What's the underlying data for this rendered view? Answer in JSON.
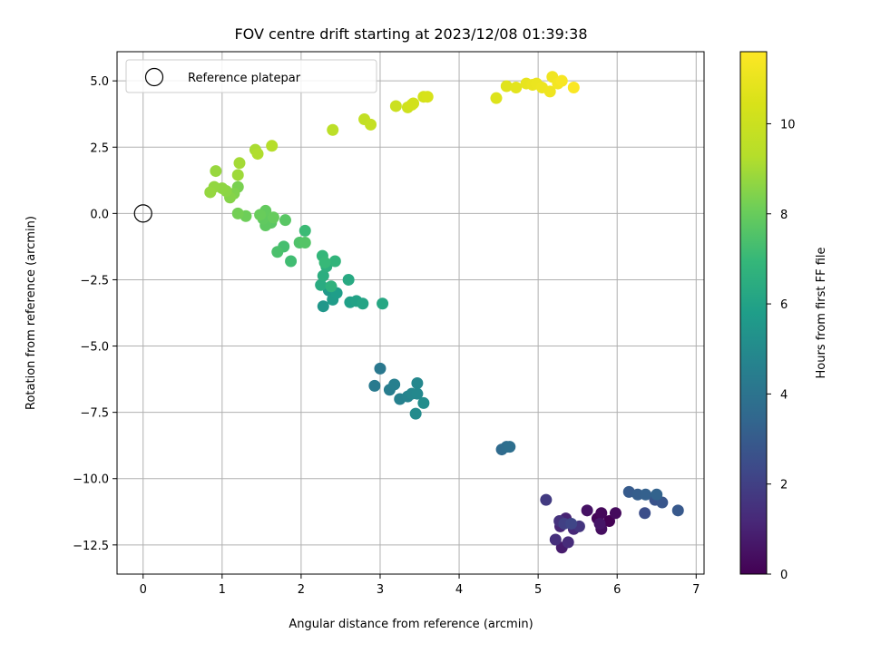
{
  "chart_data": {
    "type": "scatter",
    "title": "FOV centre drift starting at 2023/12/08 01:39:38",
    "xlabel": "Angular distance from reference (arcmin)",
    "ylabel": "Rotation from reference (arcmin)",
    "xlim": [
      -0.33,
      7.1
    ],
    "ylim": [
      -13.6,
      6.1
    ],
    "xticks": [
      0,
      1,
      2,
      3,
      4,
      5,
      6,
      7
    ],
    "yticks": [
      -12.5,
      -10.0,
      -7.5,
      -5.0,
      -2.5,
      0.0,
      2.5,
      5.0
    ],
    "xtick_labels": [
      "0",
      "1",
      "2",
      "3",
      "4",
      "5",
      "6",
      "7"
    ],
    "ytick_labels": [
      "−12.5",
      "−10.0",
      "−7.5",
      "−5.0",
      "−2.5",
      "0.0",
      "2.5",
      "5.0"
    ],
    "grid": true,
    "legend": {
      "position": "top-left",
      "label": "Reference platepar"
    },
    "reference_point": [
      0,
      0
    ],
    "colormap": "viridis",
    "colorbar": {
      "label": "Hours from first FF file",
      "range": [
        0,
        11.6
      ],
      "ticks": [
        0,
        2,
        4,
        6,
        8,
        10
      ],
      "tick_labels": [
        "0",
        "2",
        "4",
        "6",
        "8",
        "10"
      ]
    },
    "series": [
      {
        "points": [
          [
            5.9,
            -11.6,
            0.0
          ],
          [
            5.75,
            -11.5,
            0.1
          ],
          [
            5.8,
            -11.3,
            0.2
          ],
          [
            5.98,
            -11.3,
            0.3
          ],
          [
            5.8,
            -11.9,
            0.4
          ],
          [
            5.62,
            -11.2,
            0.5
          ],
          [
            5.78,
            -11.7,
            0.6
          ],
          [
            5.3,
            -12.6,
            0.8
          ],
          [
            5.35,
            -11.5,
            1.0
          ],
          [
            5.28,
            -11.8,
            1.1
          ],
          [
            5.45,
            -11.9,
            1.2
          ],
          [
            5.38,
            -12.4,
            1.3
          ],
          [
            5.22,
            -12.3,
            1.4
          ],
          [
            5.27,
            -11.6,
            1.5
          ],
          [
            5.52,
            -11.8,
            1.6
          ],
          [
            5.1,
            -10.8,
            1.8
          ],
          [
            5.33,
            -11.7,
            2.0
          ],
          [
            5.42,
            -11.7,
            2.2
          ],
          [
            6.35,
            -11.3,
            2.5
          ],
          [
            6.48,
            -10.8,
            2.7
          ],
          [
            6.57,
            -10.9,
            2.8
          ],
          [
            6.77,
            -11.2,
            2.9
          ],
          [
            6.15,
            -10.5,
            3.0
          ],
          [
            6.26,
            -10.6,
            3.1
          ],
          [
            6.36,
            -10.6,
            3.2
          ],
          [
            6.5,
            -10.6,
            3.3
          ],
          [
            4.54,
            -8.9,
            3.6
          ],
          [
            4.6,
            -8.8,
            3.7
          ],
          [
            4.64,
            -8.8,
            3.8
          ],
          [
            3.0,
            -5.85,
            4.2
          ],
          [
            2.93,
            -6.5,
            4.3
          ],
          [
            3.12,
            -6.65,
            4.4
          ],
          [
            3.18,
            -6.45,
            4.5
          ],
          [
            3.25,
            -7.0,
            4.6
          ],
          [
            3.35,
            -6.9,
            4.7
          ],
          [
            3.4,
            -6.8,
            4.8
          ],
          [
            3.47,
            -6.4,
            4.85
          ],
          [
            3.47,
            -6.8,
            4.9
          ],
          [
            3.45,
            -7.55,
            5.0
          ],
          [
            3.55,
            -7.15,
            5.1
          ],
          [
            2.28,
            -3.5,
            5.5
          ],
          [
            2.35,
            -2.9,
            5.6
          ],
          [
            2.4,
            -3.25,
            5.7
          ],
          [
            2.45,
            -3.0,
            5.8
          ],
          [
            2.62,
            -3.35,
            5.9
          ],
          [
            2.7,
            -3.3,
            6.0
          ],
          [
            2.78,
            -3.4,
            6.1
          ],
          [
            3.03,
            -3.4,
            6.2
          ],
          [
            2.6,
            -2.5,
            6.3
          ],
          [
            2.25,
            -2.7,
            6.4
          ],
          [
            2.28,
            -2.35,
            6.5
          ],
          [
            2.32,
            -2.0,
            6.6
          ],
          [
            2.38,
            -2.75,
            6.7
          ],
          [
            2.43,
            -1.8,
            6.8
          ],
          [
            2.27,
            -1.6,
            6.9
          ],
          [
            2.3,
            -1.85,
            7.0
          ],
          [
            2.05,
            -0.65,
            7.1
          ],
          [
            1.87,
            -1.8,
            7.2
          ],
          [
            1.78,
            -1.25,
            7.3
          ],
          [
            1.7,
            -1.45,
            7.4
          ],
          [
            1.98,
            -1.1,
            7.5
          ],
          [
            2.05,
            -1.1,
            7.6
          ],
          [
            1.8,
            -0.25,
            7.7
          ],
          [
            1.62,
            -0.35,
            7.75
          ],
          [
            1.55,
            -0.45,
            7.8
          ],
          [
            1.52,
            -0.2,
            7.85
          ],
          [
            1.55,
            0.1,
            7.9
          ],
          [
            1.65,
            -0.15,
            7.95
          ],
          [
            1.48,
            -0.05,
            8.0
          ],
          [
            1.3,
            -0.1,
            8.1
          ],
          [
            1.2,
            0.0,
            8.2
          ],
          [
            1.2,
            1.0,
            8.3
          ],
          [
            1.15,
            0.75,
            8.4
          ],
          [
            1.1,
            0.6,
            8.5
          ],
          [
            1.05,
            0.85,
            8.6
          ],
          [
            1.0,
            0.95,
            8.65
          ],
          [
            0.9,
            1.0,
            8.7
          ],
          [
            0.85,
            0.8,
            8.75
          ],
          [
            0.92,
            1.6,
            8.8
          ],
          [
            1.2,
            1.45,
            8.9
          ],
          [
            1.22,
            1.9,
            9.0
          ],
          [
            1.42,
            2.4,
            9.1
          ],
          [
            1.45,
            2.25,
            9.2
          ],
          [
            1.63,
            2.55,
            9.3
          ],
          [
            2.4,
            3.15,
            9.5
          ],
          [
            2.8,
            3.55,
            9.7
          ],
          [
            2.88,
            3.35,
            9.8
          ],
          [
            3.2,
            4.05,
            10.0
          ],
          [
            3.35,
            4.0,
            10.1
          ],
          [
            3.4,
            4.1,
            10.2
          ],
          [
            3.42,
            4.15,
            10.25
          ],
          [
            3.55,
            4.4,
            10.3
          ],
          [
            3.6,
            4.4,
            10.4
          ],
          [
            4.47,
            4.35,
            10.6
          ],
          [
            4.6,
            4.8,
            10.7
          ],
          [
            4.72,
            4.75,
            10.8
          ],
          [
            4.85,
            4.9,
            10.9
          ],
          [
            4.93,
            4.85,
            11.0
          ],
          [
            4.98,
            4.9,
            11.05
          ],
          [
            5.05,
            4.75,
            11.1
          ],
          [
            5.15,
            4.6,
            11.15
          ],
          [
            5.18,
            5.15,
            11.2
          ],
          [
            5.25,
            4.9,
            11.3
          ],
          [
            5.3,
            5.0,
            11.4
          ],
          [
            5.45,
            4.75,
            11.5
          ]
        ]
      }
    ]
  }
}
